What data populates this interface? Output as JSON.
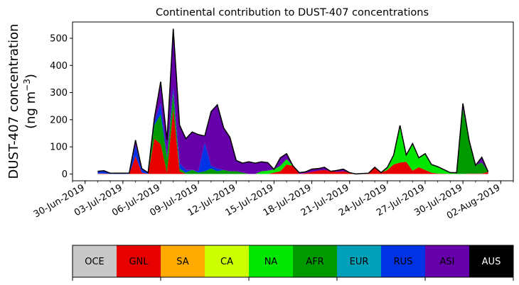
{
  "chart_data": {
    "type": "area",
    "stacked": true,
    "title": "Continental contribution to DUST-407 concentrations",
    "ylabel_line1": "DUST-407 concentration",
    "ylabel_line2_prefix": "(ng m",
    "ylabel_line2_sup": "−3",
    "ylabel_line2_suffix": ")",
    "ylim": [
      -25,
      560
    ],
    "yticks": [
      0,
      100,
      200,
      300,
      400,
      500
    ],
    "xlim": [
      "2019-06-29",
      "2019-08-03"
    ],
    "xtick_labels": [
      "30-Jun-2019",
      "03-Jul-2019",
      "06-Jul-2019",
      "09-Jul-2019",
      "12-Jul-2019",
      "15-Jul-2019",
      "18-Jul-2019",
      "21-Jul-2019",
      "24-Jul-2019",
      "27-Jul-2019",
      "30-Jul-2019",
      "02-Aug-2019"
    ],
    "xtick_dates": [
      "2019-06-30",
      "2019-07-03",
      "2019-07-06",
      "2019-07-09",
      "2019-07-12",
      "2019-07-15",
      "2019-07-18",
      "2019-07-21",
      "2019-07-24",
      "2019-07-27",
      "2019-07-30",
      "2019-08-02"
    ],
    "x": [
      "2019-07-01",
      "2019-07-01 12:00",
      "2019-07-02",
      "2019-07-02 12:00",
      "2019-07-03",
      "2019-07-03 12:00",
      "2019-07-04",
      "2019-07-04 12:00",
      "2019-07-05",
      "2019-07-05 12:00",
      "2019-07-06",
      "2019-07-06 12:00",
      "2019-07-07",
      "2019-07-07 12:00",
      "2019-07-08",
      "2019-07-08 12:00",
      "2019-07-09",
      "2019-07-09 12:00",
      "2019-07-10",
      "2019-07-10 12:00",
      "2019-07-11",
      "2019-07-11 12:00",
      "2019-07-12",
      "2019-07-12 12:00",
      "2019-07-13",
      "2019-07-13 12:00",
      "2019-07-14",
      "2019-07-14 12:00",
      "2019-07-15",
      "2019-07-15 12:00",
      "2019-07-16",
      "2019-07-16 12:00",
      "2019-07-17",
      "2019-07-17 12:00",
      "2019-07-18",
      "2019-07-18 12:00",
      "2019-07-19",
      "2019-07-19 12:00",
      "2019-07-20",
      "2019-07-20 12:00",
      "2019-07-21",
      "2019-07-21 12:00",
      "2019-07-22",
      "2019-07-22 12:00",
      "2019-07-23",
      "2019-07-23 12:00",
      "2019-07-24",
      "2019-07-24 12:00",
      "2019-07-25",
      "2019-07-25 12:00",
      "2019-07-26",
      "2019-07-26 12:00",
      "2019-07-27",
      "2019-07-27 12:00",
      "2019-07-28",
      "2019-07-28 12:00",
      "2019-07-29",
      "2019-07-29 12:00",
      "2019-07-30",
      "2019-07-30 12:00",
      "2019-07-31",
      "2019-07-31 12:00",
      "2019-08-01"
    ],
    "series": [
      {
        "name": "OCE",
        "color": "#c8c8c8",
        "values": [
          0,
          0,
          0,
          0,
          0,
          0,
          0,
          0,
          0,
          0,
          0,
          0,
          0,
          0,
          0,
          0,
          0,
          0,
          0,
          0,
          0,
          0,
          0,
          0,
          0,
          0,
          0,
          0,
          0,
          0,
          0,
          0,
          0,
          0,
          0,
          0,
          0,
          0,
          0,
          0,
          0,
          0,
          0,
          0,
          0,
          0,
          0,
          0,
          0,
          0,
          0,
          0,
          0,
          0,
          0,
          0,
          0,
          0,
          0,
          0,
          0,
          0,
          0
        ]
      },
      {
        "name": "GNL",
        "color": "#e60000",
        "values": [
          2,
          2,
          0,
          0,
          0,
          0,
          65,
          5,
          0,
          130,
          110,
          5,
          240,
          10,
          0,
          0,
          0,
          0,
          0,
          0,
          0,
          0,
          0,
          0,
          0,
          0,
          0,
          0,
          5,
          10,
          35,
          30,
          0,
          3,
          8,
          12,
          15,
          10,
          8,
          10,
          5,
          0,
          2,
          3,
          25,
          5,
          15,
          35,
          42,
          45,
          12,
          25,
          15,
          5,
          2,
          1,
          0,
          0,
          0,
          2,
          2,
          2,
          8
        ]
      },
      {
        "name": "SA",
        "color": "#ffaa00",
        "values": [
          0,
          0,
          0,
          0,
          0,
          0,
          0,
          0,
          0,
          0,
          0,
          0,
          0,
          0,
          0,
          0,
          0,
          0,
          0,
          0,
          0,
          0,
          0,
          0,
          0,
          0,
          0,
          0,
          0,
          0,
          0,
          0,
          0,
          0,
          0,
          0,
          0,
          0,
          0,
          0,
          0,
          0,
          0,
          0,
          0,
          0,
          0,
          0,
          0,
          0,
          0,
          0,
          0,
          0,
          0,
          0,
          0,
          0,
          0,
          0,
          0,
          0,
          0
        ]
      },
      {
        "name": "CA",
        "color": "#ccff00",
        "values": [
          0,
          0,
          0,
          0,
          0,
          0,
          0,
          0,
          0,
          0,
          0,
          0,
          0,
          0,
          0,
          0,
          0,
          0,
          0,
          0,
          0,
          0,
          0,
          0,
          0,
          0,
          0,
          0,
          0,
          0,
          0,
          0,
          0,
          0,
          0,
          0,
          0,
          0,
          0,
          0,
          0,
          0,
          0,
          0,
          0,
          0,
          0,
          0,
          0,
          0,
          0,
          0,
          0,
          0,
          0,
          0,
          0,
          0,
          0,
          0,
          0,
          0,
          0
        ]
      },
      {
        "name": "NA",
        "color": "#00e600",
        "values": [
          0,
          0,
          0,
          0,
          0,
          0,
          0,
          0,
          0,
          0,
          0,
          0,
          0,
          0,
          0,
          0,
          0,
          0,
          0,
          0,
          0,
          0,
          0,
          0,
          0,
          0,
          10,
          12,
          12,
          20,
          20,
          0,
          0,
          0,
          0,
          0,
          0,
          0,
          0,
          0,
          0,
          0,
          0,
          0,
          0,
          0,
          10,
          35,
          137,
          25,
          100,
          35,
          60,
          30,
          25,
          15,
          5,
          0,
          0,
          0,
          0,
          0,
          0
        ]
      },
      {
        "name": "AFR",
        "color": "#009900",
        "values": [
          0,
          0,
          0,
          0,
          0,
          0,
          0,
          0,
          0,
          50,
          110,
          55,
          60,
          10,
          5,
          15,
          5,
          10,
          20,
          10,
          15,
          10,
          10,
          5,
          0,
          0,
          0,
          0,
          0,
          0,
          0,
          0,
          0,
          0,
          0,
          0,
          0,
          0,
          0,
          0,
          0,
          0,
          0,
          0,
          0,
          0,
          0,
          0,
          0,
          0,
          0,
          0,
          0,
          0,
          0,
          0,
          0,
          5,
          240,
          120,
          30,
          40,
          0
        ]
      },
      {
        "name": "EUR",
        "color": "#00a0b8",
        "values": [
          0,
          0,
          0,
          0,
          0,
          0,
          0,
          0,
          0,
          0,
          0,
          0,
          0,
          0,
          0,
          0,
          0,
          0,
          0,
          0,
          0,
          0,
          0,
          0,
          0,
          0,
          0,
          0,
          0,
          0,
          0,
          0,
          0,
          0,
          0,
          0,
          0,
          0,
          0,
          0,
          0,
          0,
          0,
          0,
          0,
          0,
          0,
          0,
          0,
          0,
          0,
          0,
          0,
          0,
          0,
          0,
          0,
          0,
          0,
          0,
          0,
          0,
          0
        ]
      },
      {
        "name": "RUS",
        "color": "#0033e6",
        "values": [
          8,
          10,
          3,
          3,
          3,
          3,
          40,
          15,
          5,
          10,
          40,
          5,
          20,
          20,
          10,
          0,
          5,
          105,
          10,
          10,
          0,
          0,
          0,
          0,
          0,
          0,
          0,
          0,
          0,
          0,
          0,
          0,
          0,
          0,
          0,
          0,
          0,
          0,
          0,
          0,
          0,
          0,
          0,
          0,
          0,
          0,
          0,
          0,
          0,
          0,
          0,
          0,
          0,
          0,
          0,
          0,
          0,
          0,
          0,
          0,
          0,
          0,
          0
        ]
      },
      {
        "name": "ASI",
        "color": "#6600aa",
        "values": [
          0,
          0,
          0,
          0,
          0,
          0,
          20,
          0,
          0,
          15,
          80,
          60,
          215,
          140,
          115,
          140,
          135,
          25,
          200,
          235,
          155,
          125,
          40,
          35,
          45,
          40,
          35,
          30,
          0,
          30,
          20,
          0,
          5,
          5,
          10,
          8,
          10,
          0,
          5,
          8,
          0,
          0,
          0,
          0,
          0,
          0,
          0,
          0,
          0,
          0,
          0,
          0,
          0,
          0,
          0,
          0,
          0,
          0,
          20,
          0,
          0,
          20,
          0
        ]
      },
      {
        "name": "AUS",
        "color": "#000000",
        "values": [
          0,
          0,
          0,
          0,
          0,
          0,
          0,
          0,
          0,
          0,
          0,
          0,
          0,
          0,
          0,
          0,
          0,
          0,
          0,
          0,
          0,
          0,
          0,
          0,
          0,
          0,
          0,
          0,
          0,
          0,
          0,
          0,
          0,
          0,
          0,
          0,
          0,
          0,
          0,
          0,
          0,
          0,
          0,
          0,
          0,
          0,
          0,
          0,
          0,
          0,
          0,
          0,
          0,
          0,
          0,
          0,
          0,
          0,
          0,
          0,
          0,
          0,
          0
        ]
      }
    ],
    "legend": {
      "placement": "bottom",
      "entries": [
        {
          "label": "OCE",
          "color": "#c8c8c8",
          "text_color": "#000000"
        },
        {
          "label": "GNL",
          "color": "#e60000",
          "text_color": "#000000"
        },
        {
          "label": "SA",
          "color": "#ffaa00",
          "text_color": "#000000"
        },
        {
          "label": "CA",
          "color": "#ccff00",
          "text_color": "#000000"
        },
        {
          "label": "NA",
          "color": "#00e600",
          "text_color": "#000000"
        },
        {
          "label": "AFR",
          "color": "#009900",
          "text_color": "#000000"
        },
        {
          "label": "EUR",
          "color": "#00a0b8",
          "text_color": "#000000"
        },
        {
          "label": "RUS",
          "color": "#0033e6",
          "text_color": "#000000"
        },
        {
          "label": "ASI",
          "color": "#6600aa",
          "text_color": "#000000"
        },
        {
          "label": "AUS",
          "color": "#000000",
          "text_color": "#ffffff"
        }
      ]
    },
    "grid": false
  }
}
